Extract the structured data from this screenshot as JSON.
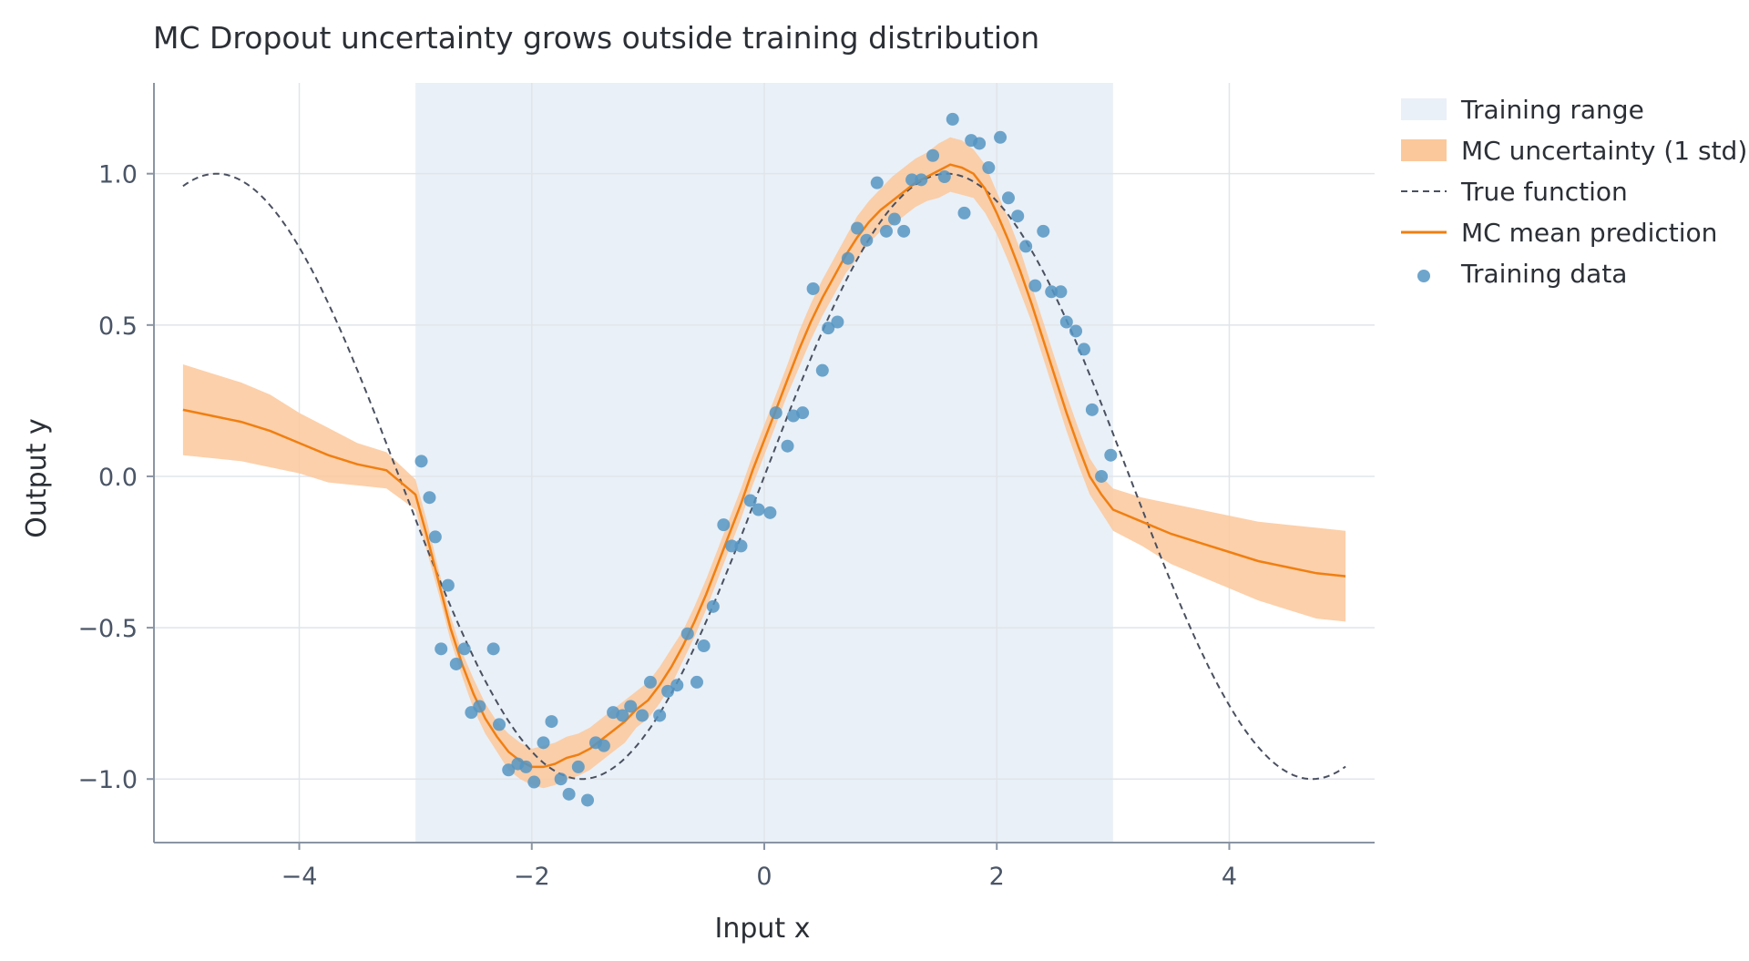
{
  "chart_data": {
    "type": "line",
    "title": "MC Dropout uncertainty grows outside training distribution",
    "xlabel": "Input x",
    "ylabel": "Output y",
    "xlim": [
      -5.25,
      5.25
    ],
    "ylim": [
      -1.21,
      1.3
    ],
    "xticks": [
      -4,
      -2,
      0,
      2,
      4
    ],
    "yticks": [
      -1.0,
      -0.5,
      0.0,
      0.5,
      1.0
    ],
    "xtick_labels": [
      "−4",
      "−2",
      "0",
      "2",
      "4"
    ],
    "ytick_labels": [
      "−1.0",
      "−0.5",
      "0.0",
      "0.5",
      "1.0"
    ],
    "grid": true,
    "legend_position": "outside-right",
    "training_range": [
      -3,
      3
    ],
    "colors": {
      "training_range": "#e9f0f7",
      "uncertainty": "#fbc89b",
      "true_function": "#4a5060",
      "mean": "#f07f12",
      "points": "#5595c3",
      "grid": "#e1e5ea",
      "axis": "#8a94a3",
      "text": "#2b2f36",
      "tick_text": "#4a5566"
    },
    "legend": [
      {
        "label": "Training range",
        "kind": "area-light"
      },
      {
        "label": "MC uncertainty (1 std)",
        "kind": "area"
      },
      {
        "label": "True function",
        "kind": "dashed"
      },
      {
        "label": "MC mean prediction",
        "kind": "line"
      },
      {
        "label": "Training data",
        "kind": "point"
      }
    ],
    "true_function": {
      "x_range": [
        -5,
        5
      ],
      "formula": "sin(x)"
    },
    "mc_mean": {
      "x": [
        -5.0,
        -4.75,
        -4.5,
        -4.25,
        -4.0,
        -3.75,
        -3.5,
        -3.25,
        -3.0,
        -2.9,
        -2.8,
        -2.7,
        -2.6,
        -2.5,
        -2.4,
        -2.3,
        -2.2,
        -2.1,
        -2.0,
        -1.9,
        -1.8,
        -1.7,
        -1.6,
        -1.5,
        -1.4,
        -1.3,
        -1.2,
        -1.1,
        -1.0,
        -0.9,
        -0.8,
        -0.7,
        -0.6,
        -0.5,
        -0.4,
        -0.3,
        -0.2,
        -0.1,
        0.0,
        0.1,
        0.2,
        0.3,
        0.4,
        0.5,
        0.6,
        0.7,
        0.8,
        0.9,
        1.0,
        1.1,
        1.2,
        1.3,
        1.4,
        1.5,
        1.6,
        1.7,
        1.8,
        1.9,
        2.0,
        2.1,
        2.2,
        2.3,
        2.4,
        2.5,
        2.6,
        2.7,
        2.8,
        2.9,
        3.0,
        3.25,
        3.5,
        3.75,
        4.0,
        4.25,
        4.5,
        4.75,
        5.0
      ],
      "y": [
        0.22,
        0.2,
        0.18,
        0.15,
        0.11,
        0.07,
        0.04,
        0.02,
        -0.06,
        -0.2,
        -0.35,
        -0.5,
        -0.62,
        -0.72,
        -0.8,
        -0.86,
        -0.91,
        -0.94,
        -0.96,
        -0.96,
        -0.95,
        -0.93,
        -0.92,
        -0.9,
        -0.87,
        -0.84,
        -0.81,
        -0.77,
        -0.74,
        -0.69,
        -0.63,
        -0.56,
        -0.48,
        -0.39,
        -0.29,
        -0.19,
        -0.09,
        0.02,
        0.12,
        0.22,
        0.32,
        0.42,
        0.51,
        0.59,
        0.66,
        0.73,
        0.79,
        0.84,
        0.88,
        0.91,
        0.94,
        0.97,
        0.99,
        1.01,
        1.03,
        1.02,
        1.0,
        0.95,
        0.87,
        0.78,
        0.68,
        0.57,
        0.45,
        0.33,
        0.21,
        0.1,
        0.0,
        -0.06,
        -0.11,
        -0.15,
        -0.19,
        -0.22,
        -0.25,
        -0.28,
        -0.3,
        -0.32,
        -0.33
      ]
    },
    "mc_std": [
      0.15,
      0.14,
      0.13,
      0.12,
      0.1,
      0.09,
      0.07,
      0.06,
      0.05,
      0.05,
      0.04,
      0.04,
      0.04,
      0.05,
      0.05,
      0.05,
      0.06,
      0.06,
      0.06,
      0.07,
      0.07,
      0.07,
      0.07,
      0.07,
      0.07,
      0.07,
      0.07,
      0.06,
      0.06,
      0.06,
      0.06,
      0.05,
      0.05,
      0.05,
      0.05,
      0.05,
      0.05,
      0.05,
      0.05,
      0.05,
      0.05,
      0.06,
      0.06,
      0.06,
      0.06,
      0.06,
      0.07,
      0.07,
      0.07,
      0.08,
      0.08,
      0.08,
      0.08,
      0.09,
      0.09,
      0.09,
      0.08,
      0.08,
      0.07,
      0.07,
      0.07,
      0.06,
      0.06,
      0.06,
      0.06,
      0.06,
      0.06,
      0.06,
      0.07,
      0.08,
      0.1,
      0.11,
      0.12,
      0.13,
      0.14,
      0.15,
      0.15
    ],
    "training_points": [
      [
        -2.95,
        0.05
      ],
      [
        -2.88,
        -0.07
      ],
      [
        -2.83,
        -0.2
      ],
      [
        -2.78,
        -0.57
      ],
      [
        -2.72,
        -0.36
      ],
      [
        -2.65,
        -0.62
      ],
      [
        -2.58,
        -0.57
      ],
      [
        -2.52,
        -0.78
      ],
      [
        -2.45,
        -0.76
      ],
      [
        -2.33,
        -0.57
      ],
      [
        -2.28,
        -0.82
      ],
      [
        -2.2,
        -0.97
      ],
      [
        -2.12,
        -0.95
      ],
      [
        -2.05,
        -0.96
      ],
      [
        -1.98,
        -1.01
      ],
      [
        -1.9,
        -0.88
      ],
      [
        -1.83,
        -0.81
      ],
      [
        -1.75,
        -1.0
      ],
      [
        -1.68,
        -1.05
      ],
      [
        -1.6,
        -0.96
      ],
      [
        -1.52,
        -1.07
      ],
      [
        -1.45,
        -0.88
      ],
      [
        -1.38,
        -0.89
      ],
      [
        -1.3,
        -0.78
      ],
      [
        -1.22,
        -0.79
      ],
      [
        -1.15,
        -0.76
      ],
      [
        -1.05,
        -0.79
      ],
      [
        -0.98,
        -0.68
      ],
      [
        -0.9,
        -0.79
      ],
      [
        -0.83,
        -0.71
      ],
      [
        -0.75,
        -0.69
      ],
      [
        -0.66,
        -0.52
      ],
      [
        -0.58,
        -0.68
      ],
      [
        -0.52,
        -0.56
      ],
      [
        -0.44,
        -0.43
      ],
      [
        -0.35,
        -0.16
      ],
      [
        -0.28,
        -0.23
      ],
      [
        -0.2,
        -0.23
      ],
      [
        -0.12,
        -0.08
      ],
      [
        -0.05,
        -0.11
      ],
      [
        0.05,
        -0.12
      ],
      [
        0.1,
        0.21
      ],
      [
        0.2,
        0.1
      ],
      [
        0.25,
        0.2
      ],
      [
        0.33,
        0.21
      ],
      [
        0.42,
        0.62
      ],
      [
        0.5,
        0.35
      ],
      [
        0.55,
        0.49
      ],
      [
        0.63,
        0.51
      ],
      [
        0.72,
        0.72
      ],
      [
        0.8,
        0.82
      ],
      [
        0.88,
        0.78
      ],
      [
        0.97,
        0.97
      ],
      [
        1.05,
        0.81
      ],
      [
        1.12,
        0.85
      ],
      [
        1.2,
        0.81
      ],
      [
        1.27,
        0.98
      ],
      [
        1.35,
        0.98
      ],
      [
        1.45,
        1.06
      ],
      [
        1.55,
        0.99
      ],
      [
        1.62,
        1.18
      ],
      [
        1.72,
        0.87
      ],
      [
        1.78,
        1.11
      ],
      [
        1.85,
        1.1
      ],
      [
        1.93,
        1.02
      ],
      [
        2.03,
        1.12
      ],
      [
        2.1,
        0.92
      ],
      [
        2.18,
        0.86
      ],
      [
        2.25,
        0.76
      ],
      [
        2.33,
        0.63
      ],
      [
        2.4,
        0.81
      ],
      [
        2.47,
        0.61
      ],
      [
        2.55,
        0.61
      ],
      [
        2.6,
        0.51
      ],
      [
        2.68,
        0.48
      ],
      [
        2.75,
        0.42
      ],
      [
        2.82,
        0.22
      ],
      [
        2.9,
        0.0
      ],
      [
        2.98,
        0.07
      ]
    ]
  }
}
